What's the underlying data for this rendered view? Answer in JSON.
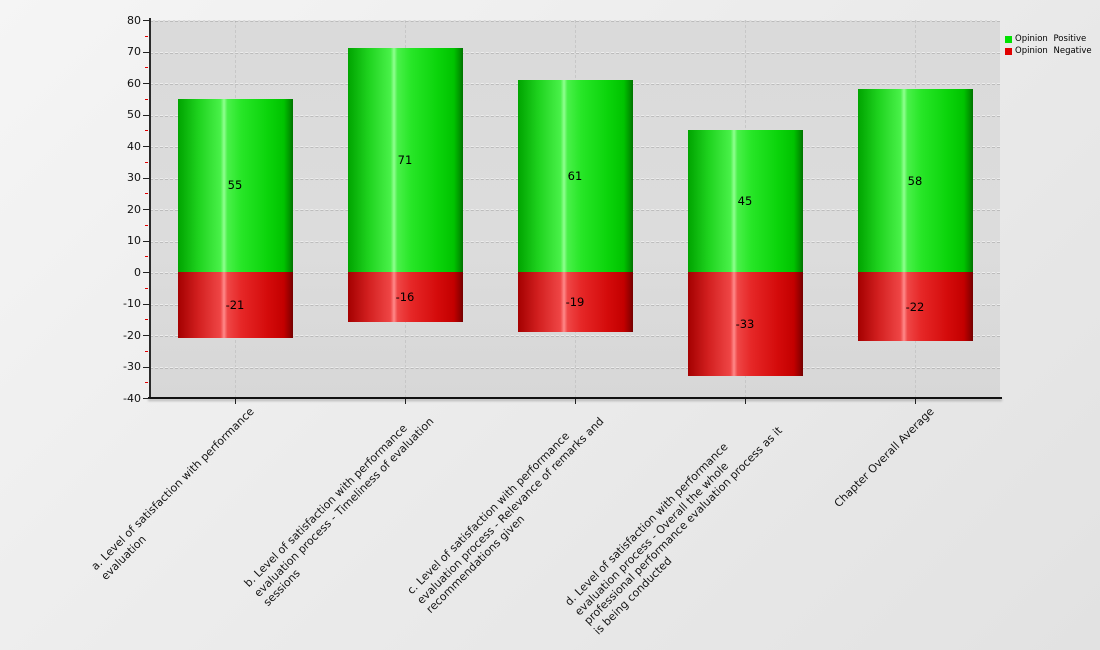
{
  "chart_data": {
    "type": "bar",
    "stacking": "diverging",
    "title": "",
    "xlabel": "",
    "ylabel": "",
    "ylim": [
      -40,
      80
    ],
    "ytick_step": 10,
    "yminor_tick_step": 5,
    "grid": "dashed-horizontal-and-vertical",
    "legend_position": "top-right-outside",
    "categories": [
      {
        "lines": [
          "a. Level of satisfaction with performance",
          "evaluation"
        ]
      },
      {
        "lines": [
          "b. Level of satisfaction with performance",
          "evaluation process - Timeliness of evaluation",
          "sessions"
        ]
      },
      {
        "lines": [
          "c. Level of satisfaction with performance",
          "evaluation process - Relevance of remarks and",
          "recommendations given"
        ]
      },
      {
        "lines": [
          "d. Level of satisfaction with performance",
          "evaluation process - Overall the whole",
          "professional performance evaluation process as it",
          "is being conducted"
        ]
      },
      {
        "lines": [
          "Chapter Overall Average"
        ]
      }
    ],
    "series": [
      {
        "name": "Opinion Positive",
        "color": "#00e100",
        "values": [
          55,
          71,
          61,
          45,
          58
        ]
      },
      {
        "name": "Opinion Negative",
        "color": "#e10000",
        "values": [
          -21,
          -16,
          -19,
          -33,
          -22
        ]
      }
    ]
  },
  "colors": {
    "plot_background": "#dcdcdc",
    "page_background": "#ececec",
    "axis": "#111111",
    "minor_tick": "#e00000",
    "positive_bar": "#22dd22",
    "negative_bar": "#dd2222",
    "label_text": "#000000"
  }
}
